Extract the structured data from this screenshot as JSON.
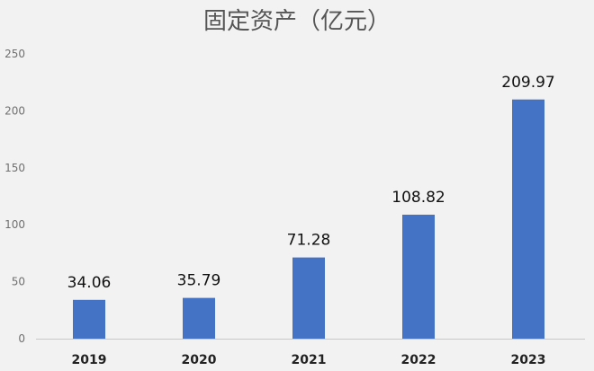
{
  "chart_data": {
    "type": "bar",
    "title": "固定资产（亿元）",
    "xlabel": "",
    "ylabel": "",
    "categories": [
      "2019",
      "2020",
      "2021",
      "2022",
      "2023"
    ],
    "values": [
      34.06,
      35.79,
      71.28,
      108.82,
      209.97
    ],
    "data_labels": [
      "34.06",
      "35.79",
      "71.28",
      "108.82",
      "209.97"
    ],
    "ylim": [
      0,
      250
    ],
    "yticks": [
      0,
      50,
      100,
      150,
      200,
      250
    ],
    "ytick_labels": [
      "0",
      "50",
      "100",
      "150",
      "200",
      "250"
    ],
    "grid": false,
    "legend": "none",
    "bar_color": "#4472c4"
  }
}
